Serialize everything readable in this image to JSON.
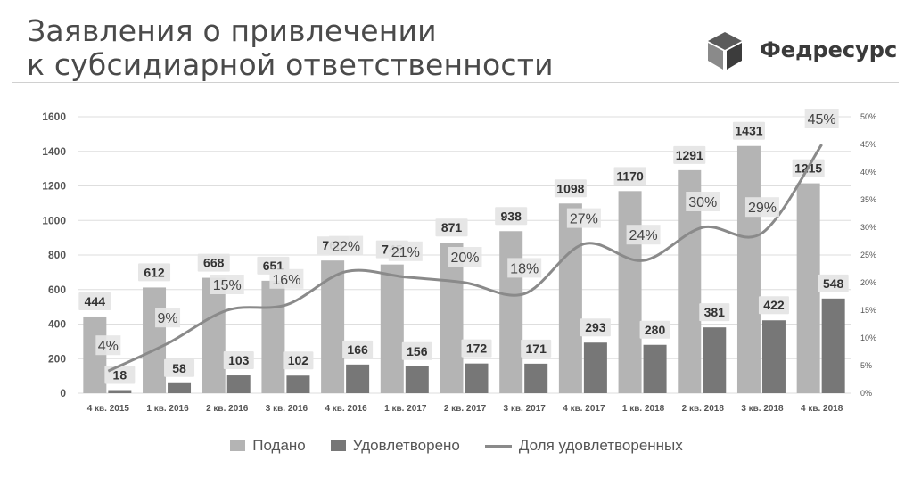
{
  "header": {
    "title_line1": "Заявления о привлечении",
    "title_line2": "к субсидиарной ответственности",
    "brand": "Федресурс"
  },
  "colors": {
    "submitted": "#b4b4b4",
    "satisfied": "#777777",
    "share_line": "#8a8a8a",
    "grid": "#dedede",
    "text": "#555555",
    "label_bg": "#e6e6e6"
  },
  "chart_data": {
    "type": "bar",
    "categories": [
      "4 кв. 2015",
      "1 кв. 2016",
      "2 кв. 2016",
      "3 кв. 2016",
      "4 кв. 2016",
      "1 кв. 2017",
      "2 кв. 2017",
      "3 кв. 2017",
      "4 кв. 2017",
      "1 кв. 2018",
      "2 кв. 2018",
      "3 кв. 2018",
      "4 кв. 2018"
    ],
    "series": [
      {
        "name": "Подано",
        "kind": "bar",
        "axis": "left",
        "values": [
          444,
          612,
          668,
          651,
          768,
          745,
          871,
          938,
          1098,
          1170,
          1291,
          1431,
          1215
        ]
      },
      {
        "name": "Удовлетворено",
        "kind": "bar",
        "axis": "left",
        "values": [
          18,
          58,
          103,
          102,
          166,
          156,
          172,
          171,
          293,
          280,
          381,
          422,
          548
        ]
      },
      {
        "name": "Доля удовлетворенных",
        "kind": "line",
        "axis": "right",
        "values": [
          4,
          9,
          15,
          16,
          22,
          21,
          20,
          18,
          27,
          24,
          30,
          29,
          45
        ],
        "labels": [
          "4%",
          "9%",
          "15%",
          "16%",
          "22%",
          "21%",
          "20%",
          "18%",
          "27%",
          "24%",
          "30%",
          "29%",
          "45%"
        ]
      }
    ],
    "ylim": [
      0,
      1600
    ],
    "yticks": [
      "0",
      "200",
      "400",
      "600",
      "800",
      "1000",
      "1200",
      "1400",
      "1600"
    ],
    "y2lim": [
      0,
      50
    ],
    "y2ticks": [
      "0%",
      "5%",
      "10%",
      "15%",
      "20%",
      "25%",
      "30%",
      "35%",
      "40%",
      "45%",
      "50%"
    ],
    "grid": true,
    "legend_position": "bottom"
  },
  "legend": [
    {
      "label": "Подано",
      "type": "box",
      "color": "#b4b4b4"
    },
    {
      "label": "Удовлетворено",
      "type": "box",
      "color": "#777777"
    },
    {
      "label": "Доля удовлетворенных",
      "type": "line",
      "color": "#8a8a8a"
    }
  ]
}
